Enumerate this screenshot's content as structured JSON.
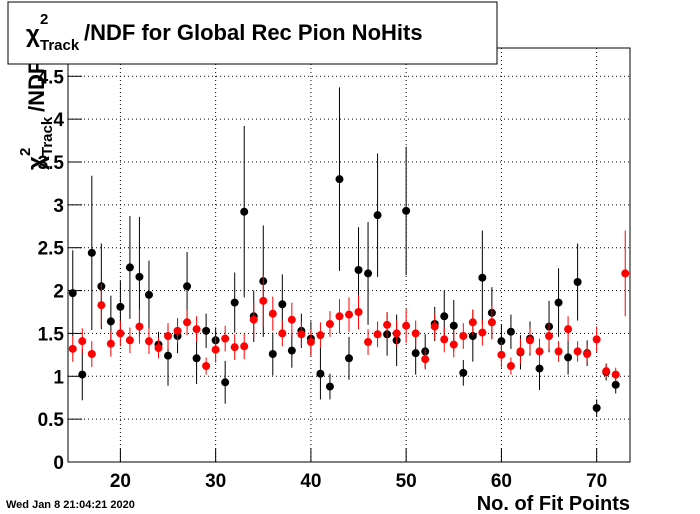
{
  "chart_data": {
    "type": "scatter",
    "title_symbol": "χ",
    "title_sup": "2",
    "title_sub": "Track",
    "title_rest": "/NDF for Global Rec Pion NoHits",
    "y_label_symbol": "χ",
    "y_label_sup": "2",
    "y_label_sub": "Track",
    "y_label_rest": "/NDF",
    "x_label": "No. of Fit Points",
    "date": "Wed Jan  8 21:04:21 2020",
    "xlim": [
      14.5,
      73.5
    ],
    "xticks": [
      20,
      30,
      40,
      50,
      60,
      70
    ],
    "ylim": [
      0,
      4.83
    ],
    "yticks": [
      0,
      0.5,
      1,
      1.5,
      2,
      2.5,
      3,
      3.5,
      4,
      4.5
    ],
    "grid": true,
    "series": [
      {
        "color": "#000000",
        "x": [
          15,
          16,
          17,
          18,
          19,
          20,
          21,
          22,
          23,
          24,
          25,
          26,
          27,
          28,
          29,
          30,
          31,
          32,
          33,
          34,
          35,
          36,
          37,
          38,
          39,
          40,
          41,
          42,
          43,
          44,
          45,
          46,
          47,
          48,
          49,
          50,
          51,
          52,
          53,
          54,
          55,
          56,
          57,
          58,
          59,
          60,
          61,
          62,
          63,
          64,
          65,
          66,
          67,
          68,
          69,
          70,
          71,
          72
        ],
        "values": [
          1.97,
          1.02,
          2.44,
          2.05,
          1.64,
          1.81,
          2.27,
          2.16,
          1.95,
          1.37,
          1.24,
          1.47,
          2.05,
          1.21,
          1.53,
          1.42,
          0.93,
          1.86,
          2.92,
          1.7,
          2.11,
          1.26,
          1.84,
          1.3,
          1.53,
          1.44,
          1.03,
          0.88,
          3.3,
          1.21,
          2.24,
          2.2,
          2.88,
          1.49,
          1.42,
          2.93,
          1.27,
          1.29,
          1.61,
          1.7,
          1.59,
          1.04,
          1.47,
          2.15,
          1.74,
          1.41,
          1.52,
          1.28,
          1.44,
          1.09,
          1.58,
          1.86,
          1.22,
          2.1,
          1.27,
          0.63,
          1.05,
          0.9
        ],
        "errors": [
          0.5,
          0.3,
          0.9,
          0.5,
          0.3,
          0.3,
          0.6,
          0.7,
          0.4,
          0.15,
          0.35,
          0.2,
          0.4,
          0.3,
          0.2,
          0.15,
          0.25,
          0.35,
          1.0,
          0.3,
          0.65,
          0.25,
          0.35,
          0.2,
          0.2,
          0.2,
          0.3,
          0.15,
          1.07,
          0.25,
          0.5,
          0.6,
          0.72,
          0.25,
          0.3,
          0.75,
          0.25,
          0.2,
          0.2,
          0.3,
          0.3,
          0.15,
          0.3,
          0.55,
          0.3,
          0.2,
          0.2,
          0.2,
          0.2,
          0.25,
          0.3,
          0.4,
          0.2,
          0.45,
          0.15,
          0.1,
          0.1,
          0.1
        ]
      },
      {
        "color": "#ff0000",
        "x": [
          15,
          16,
          17,
          18,
          19,
          20,
          21,
          22,
          23,
          24,
          25,
          26,
          27,
          28,
          29,
          30,
          31,
          32,
          33,
          34,
          35,
          36,
          37,
          38,
          39,
          40,
          41,
          42,
          43,
          44,
          45,
          46,
          47,
          48,
          49,
          50,
          51,
          52,
          53,
          54,
          55,
          56,
          57,
          58,
          59,
          60,
          61,
          62,
          63,
          64,
          65,
          66,
          67,
          68,
          69,
          70,
          71,
          72,
          73
        ],
        "values": [
          1.32,
          1.41,
          1.26,
          1.83,
          1.38,
          1.5,
          1.42,
          1.58,
          1.41,
          1.33,
          1.47,
          1.53,
          1.63,
          1.55,
          1.12,
          1.31,
          1.44,
          1.34,
          1.35,
          1.66,
          1.88,
          1.73,
          1.5,
          1.66,
          1.49,
          1.4,
          1.48,
          1.61,
          1.7,
          1.72,
          1.75,
          1.4,
          1.49,
          1.6,
          1.5,
          1.59,
          1.5,
          1.2,
          1.58,
          1.43,
          1.37,
          1.47,
          1.63,
          1.51,
          1.63,
          1.25,
          1.12,
          1.29,
          1.42,
          1.29,
          1.47,
          1.29,
          1.55,
          1.29,
          1.26,
          1.43,
          1.06,
          1.02,
          2.2
        ],
        "errors": [
          0.15,
          0.15,
          0.15,
          0.25,
          0.15,
          0.15,
          0.15,
          0.2,
          0.15,
          0.12,
          0.15,
          0.15,
          0.15,
          0.15,
          0.1,
          0.15,
          0.15,
          0.15,
          0.15,
          0.2,
          0.3,
          0.2,
          0.15,
          0.2,
          0.15,
          0.15,
          0.15,
          0.15,
          0.2,
          0.2,
          0.2,
          0.15,
          0.15,
          0.15,
          0.15,
          0.2,
          0.15,
          0.12,
          0.15,
          0.15,
          0.15,
          0.15,
          0.15,
          0.15,
          0.2,
          0.15,
          0.1,
          0.15,
          0.15,
          0.15,
          0.15,
          0.12,
          0.15,
          0.12,
          0.1,
          0.15,
          0.08,
          0.08,
          0.5
        ]
      }
    ]
  }
}
